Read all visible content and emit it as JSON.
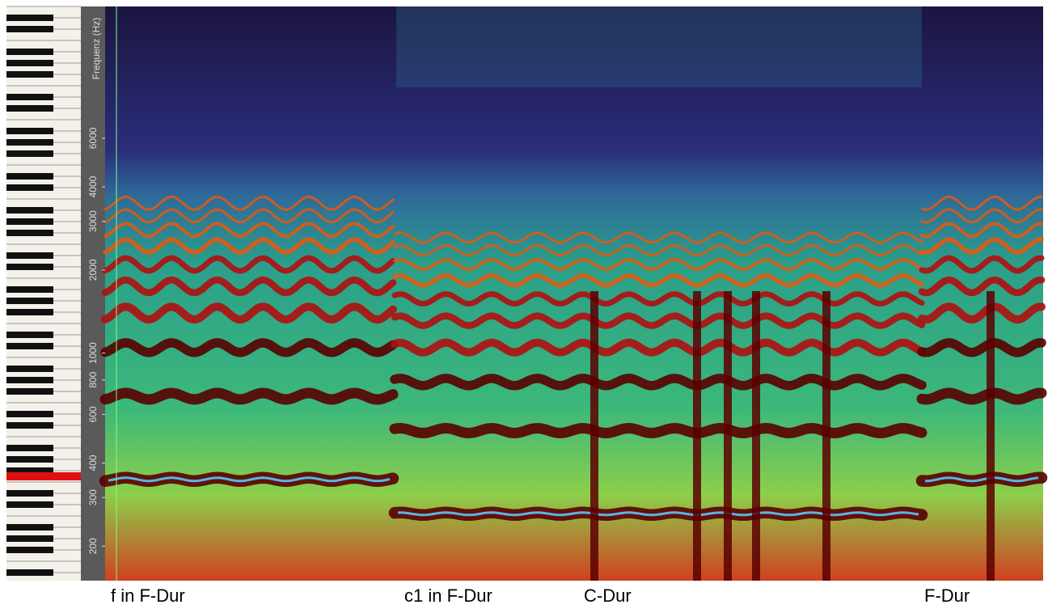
{
  "axis": {
    "label": "Frequenz (Hz)",
    "scale": "log",
    "ylim": [
      150,
      18000
    ],
    "ticks": [
      200,
      300,
      400,
      600,
      800,
      1000,
      2000,
      3000,
      4000,
      6000
    ]
  },
  "annotations": [
    "f in F-Dur",
    "c1 in F-Dur",
    "C-Dur",
    "F-Dur"
  ]
}
